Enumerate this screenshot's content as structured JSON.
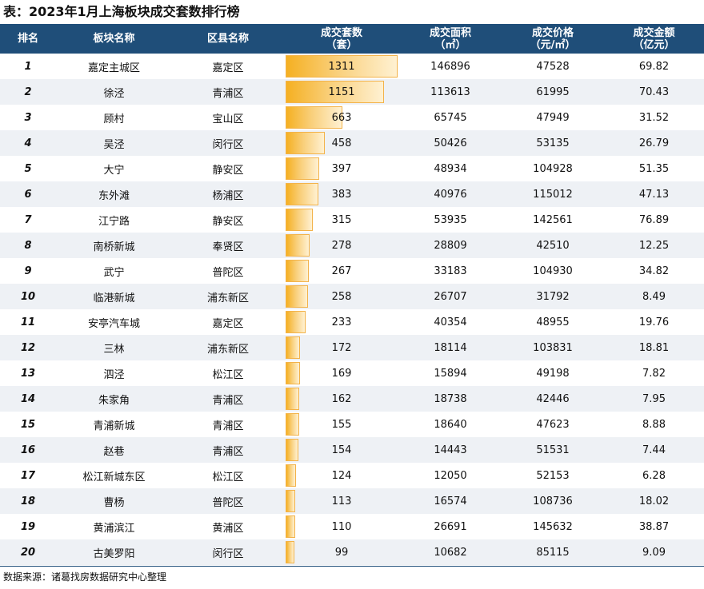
{
  "title": "表：2023年1月上海板块成交套数排行榜",
  "source": "数据来源：诸葛找房数据研究中心整理",
  "headers": {
    "rank": "排名",
    "block": "板块名称",
    "district": "区县名称",
    "units": "成交套数\n（套）",
    "area": "成交面积\n（㎡）",
    "price": "成交价格\n（元/㎡）",
    "amount": "成交金额\n（亿元）"
  },
  "chart_data": {
    "type": "table",
    "title": "表：2023年1月上海板块成交套数排行榜",
    "columns": [
      "排名",
      "板块名称",
      "区县名称",
      "成交套数（套）",
      "成交面积（㎡）",
      "成交价格（元/㎡）",
      "成交金额（亿元）"
    ],
    "max_units": 1311,
    "rows": [
      {
        "rank": "1",
        "block": "嘉定主城区",
        "district": "嘉定区",
        "units": 1311,
        "area": "146896",
        "price": "47528",
        "amount": "69.82"
      },
      {
        "rank": "2",
        "block": "徐泾",
        "district": "青浦区",
        "units": 1151,
        "area": "113613",
        "price": "61995",
        "amount": "70.43"
      },
      {
        "rank": "3",
        "block": "顾村",
        "district": "宝山区",
        "units": 663,
        "area": "65745",
        "price": "47949",
        "amount": "31.52"
      },
      {
        "rank": "4",
        "block": "吴泾",
        "district": "闵行区",
        "units": 458,
        "area": "50426",
        "price": "53135",
        "amount": "26.79"
      },
      {
        "rank": "5",
        "block": "大宁",
        "district": "静安区",
        "units": 397,
        "area": "48934",
        "price": "104928",
        "amount": "51.35"
      },
      {
        "rank": "6",
        "block": "东外滩",
        "district": "杨浦区",
        "units": 383,
        "area": "40976",
        "price": "115012",
        "amount": "47.13"
      },
      {
        "rank": "7",
        "block": "江宁路",
        "district": "静安区",
        "units": 315,
        "area": "53935",
        "price": "142561",
        "amount": "76.89"
      },
      {
        "rank": "8",
        "block": "南桥新城",
        "district": "奉贤区",
        "units": 278,
        "area": "28809",
        "price": "42510",
        "amount": "12.25"
      },
      {
        "rank": "9",
        "block": "武宁",
        "district": "普陀区",
        "units": 267,
        "area": "33183",
        "price": "104930",
        "amount": "34.82"
      },
      {
        "rank": "10",
        "block": "临港新城",
        "district": "浦东新区",
        "units": 258,
        "area": "26707",
        "price": "31792",
        "amount": "8.49"
      },
      {
        "rank": "11",
        "block": "安亭汽车城",
        "district": "嘉定区",
        "units": 233,
        "area": "40354",
        "price": "48955",
        "amount": "19.76"
      },
      {
        "rank": "12",
        "block": "三林",
        "district": "浦东新区",
        "units": 172,
        "area": "18114",
        "price": "103831",
        "amount": "18.81"
      },
      {
        "rank": "13",
        "block": "泗泾",
        "district": "松江区",
        "units": 169,
        "area": "15894",
        "price": "49198",
        "amount": "7.82"
      },
      {
        "rank": "14",
        "block": "朱家角",
        "district": "青浦区",
        "units": 162,
        "area": "18738",
        "price": "42446",
        "amount": "7.95"
      },
      {
        "rank": "15",
        "block": "青浦新城",
        "district": "青浦区",
        "units": 155,
        "area": "18640",
        "price": "47623",
        "amount": "8.88"
      },
      {
        "rank": "16",
        "block": "赵巷",
        "district": "青浦区",
        "units": 154,
        "area": "14443",
        "price": "51531",
        "amount": "7.44"
      },
      {
        "rank": "17",
        "block": "松江新城东区",
        "district": "松江区",
        "units": 124,
        "area": "12050",
        "price": "52153",
        "amount": "6.28"
      },
      {
        "rank": "18",
        "block": "曹杨",
        "district": "普陀区",
        "units": 113,
        "area": "16574",
        "price": "108736",
        "amount": "18.02"
      },
      {
        "rank": "19",
        "block": "黄浦滨江",
        "district": "黄浦区",
        "units": 110,
        "area": "26691",
        "price": "145632",
        "amount": "38.87"
      },
      {
        "rank": "20",
        "block": "古美罗阳",
        "district": "闵行区",
        "units": 99,
        "area": "10682",
        "price": "85115",
        "amount": "9.09"
      }
    ]
  }
}
